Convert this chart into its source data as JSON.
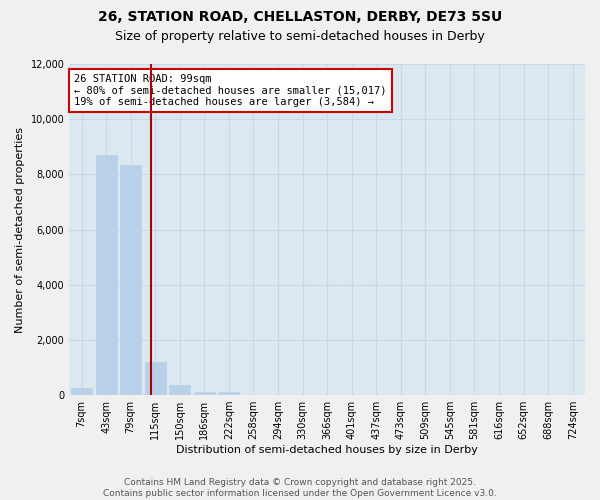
{
  "title_line1": "26, STATION ROAD, CHELLASTON, DERBY, DE73 5SU",
  "title_line2": "Size of property relative to semi-detached houses in Derby",
  "xlabel": "Distribution of semi-detached houses by size in Derby",
  "ylabel": "Number of semi-detached properties",
  "bar_labels": [
    "7sqm",
    "43sqm",
    "79sqm",
    "115sqm",
    "150sqm",
    "186sqm",
    "222sqm",
    "258sqm",
    "294sqm",
    "330sqm",
    "366sqm",
    "401sqm",
    "437sqm",
    "473sqm",
    "509sqm",
    "545sqm",
    "581sqm",
    "616sqm",
    "652sqm",
    "688sqm",
    "724sqm"
  ],
  "bar_values": [
    250,
    8700,
    8350,
    1200,
    350,
    100,
    100,
    0,
    0,
    0,
    0,
    0,
    0,
    0,
    0,
    0,
    0,
    0,
    0,
    0,
    0
  ],
  "bar_color": "#b8d0e8",
  "bar_edgecolor": "#b8d0e8",
  "vline_x_bar_index": 2.82,
  "vline_color": "#aa0000",
  "annotation_text": "26 STATION ROAD: 99sqm\n← 80% of semi-detached houses are smaller (15,017)\n19% of semi-detached houses are larger (3,584) →",
  "annotation_box_edgecolor": "#cc0000",
  "annotation_box_facecolor": "#ffffff",
  "ylim": [
    0,
    12000
  ],
  "yticks": [
    0,
    2000,
    4000,
    6000,
    8000,
    10000,
    12000
  ],
  "grid_color": "#c8d8e8",
  "plot_bg_color": "#dce8f0",
  "fig_bg_color": "#f0f0f0",
  "footer_line1": "Contains HM Land Registry data © Crown copyright and database right 2025.",
  "footer_line2": "Contains public sector information licensed under the Open Government Licence v3.0.",
  "title_fontsize": 10,
  "subtitle_fontsize": 9,
  "axis_label_fontsize": 8,
  "tick_fontsize": 7,
  "annotation_fontsize": 7.5,
  "footer_fontsize": 6.5
}
